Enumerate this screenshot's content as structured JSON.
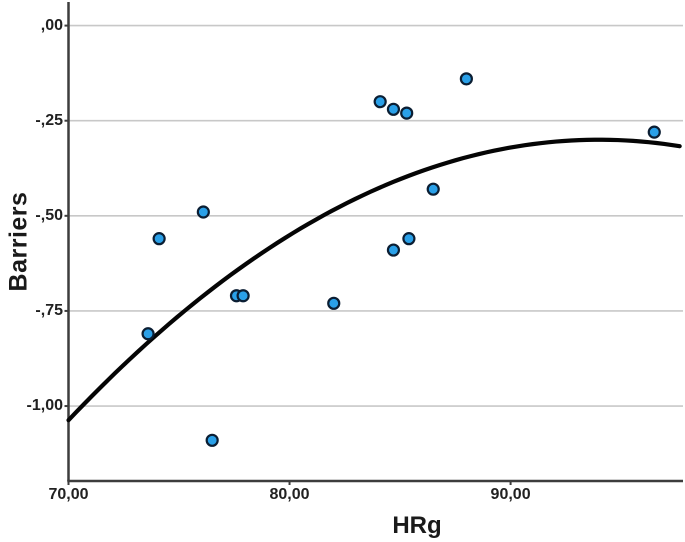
{
  "figure": {
    "background": "#ffffff"
  },
  "chart_data": {
    "type": "scatter",
    "title": "",
    "xlabel": "HRg",
    "ylabel": "Barriers",
    "grid": "horizontal",
    "legend": "none",
    "x_domain": [
      70,
      97.8
    ],
    "y_domain": [
      0.062,
      -1.197
    ],
    "x_ticks": {
      "values": [
        70,
        80,
        90
      ],
      "labels": [
        "70,00",
        "80,00",
        "90,00"
      ]
    },
    "y_ticks": {
      "values": [
        0,
        -0.25,
        -0.5,
        -0.75,
        -1.0
      ],
      "labels": [
        ",00",
        "-,25",
        "-,50",
        "-,75",
        "-1,00"
      ]
    },
    "points": [
      [
        73.6,
        -0.81
      ],
      [
        74.1,
        -0.56
      ],
      [
        76.1,
        -0.49
      ],
      [
        76.5,
        -1.09
      ],
      [
        77.6,
        -0.71
      ],
      [
        77.9,
        -0.71
      ],
      [
        82.0,
        -0.73
      ],
      [
        84.1,
        -0.2
      ],
      [
        84.7,
        -0.22
      ],
      [
        85.3,
        -0.23
      ],
      [
        84.7,
        -0.59
      ],
      [
        85.4,
        -0.56
      ],
      [
        86.5,
        -0.43
      ],
      [
        88.0,
        -0.14
      ],
      [
        96.5,
        -0.28
      ]
    ],
    "fit_curve": {
      "type": "quadratic",
      "a": -0.00128,
      "vertex_x": 94,
      "vertex_y": -0.3,
      "x_start": 70,
      "x_end": 97.8
    },
    "colors": {
      "marker_fill": "#2aa0e8",
      "marker_stroke": "#0b1e33",
      "curve": "#050505",
      "gridline": "#c8c8c8",
      "axis": "#3d3d3d",
      "tick_label": "#212121",
      "axis_label": "#1a1a1a"
    },
    "marker_radius": 5.5
  }
}
